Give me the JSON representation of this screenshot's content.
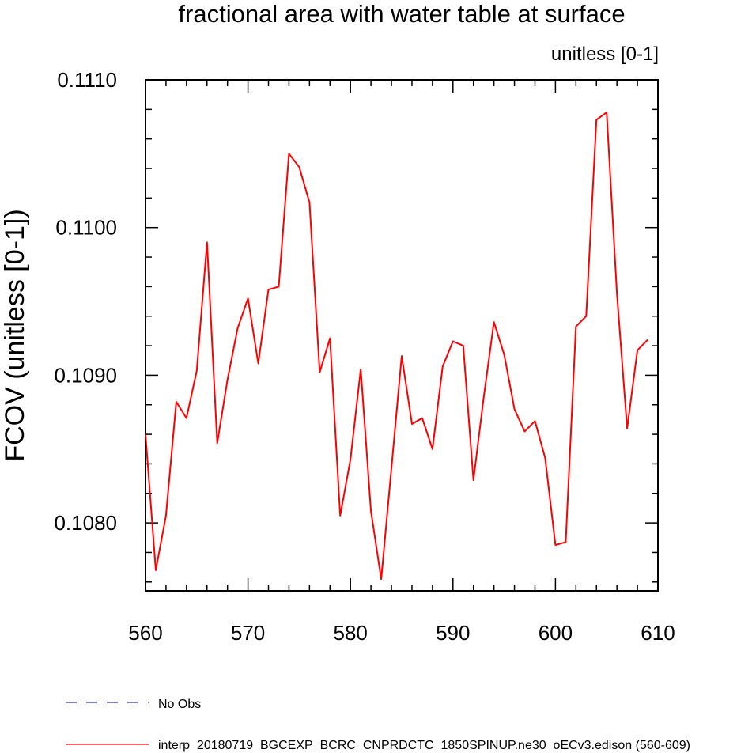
{
  "chart_data": {
    "type": "line",
    "title": "fractional area with water table at surface",
    "units_label": "unitless [0-1]",
    "ylabel": "FCOV  (unitless [0-1])",
    "xlabel": "",
    "xlim": [
      560,
      610
    ],
    "ylim": [
      0.10754,
      0.111
    ],
    "x_ticks": [
      560,
      570,
      580,
      590,
      600,
      610
    ],
    "x_tick_labels": [
      "560",
      "570",
      "580",
      "590",
      "600",
      "610"
    ],
    "y_ticks": [
      0.108,
      0.109,
      0.11,
      0.111
    ],
    "y_tick_labels": [
      "0.1080",
      "0.1090",
      "0.1100",
      "0.1110"
    ],
    "grid": false,
    "series": [
      {
        "name": "interp_20180719_BGCEXP_BCRC_CNPRDCTC_1850SPINUP.ne30_oECv3.edison (560-609)",
        "color": "#ff0000",
        "style": "solid",
        "x": [
          560,
          561,
          562,
          563,
          564,
          565,
          566,
          567,
          568,
          569,
          570,
          571,
          572,
          573,
          574,
          575,
          576,
          577,
          578,
          579,
          580,
          581,
          582,
          583,
          584,
          585,
          586,
          587,
          588,
          589,
          590,
          591,
          592,
          593,
          594,
          595,
          596,
          597,
          598,
          599,
          600,
          601,
          602,
          603,
          604,
          605,
          606,
          607,
          608,
          609
        ],
        "values": [
          0.1086,
          0.10768,
          0.10805,
          0.10882,
          0.10871,
          0.10903,
          0.1099,
          0.10854,
          0.10897,
          0.10932,
          0.10952,
          0.10908,
          0.10958,
          0.1096,
          0.1105,
          0.11041,
          0.11017,
          0.10902,
          0.10925,
          0.10805,
          0.10843,
          0.10904,
          0.10808,
          0.10762,
          0.10837,
          0.10913,
          0.10867,
          0.10871,
          0.1085,
          0.10906,
          0.10923,
          0.1092,
          0.10829,
          0.10885,
          0.10936,
          0.10914,
          0.10877,
          0.10862,
          0.10869,
          0.10844,
          0.10785,
          0.10787,
          0.10933,
          0.1094,
          0.11073,
          0.11078,
          0.10955,
          0.10864,
          0.10917,
          0.10924
        ]
      }
    ],
    "legend": [
      {
        "label": "No Obs",
        "color": "#3333cc",
        "style": "dashed"
      },
      {
        "label": "interp_20180719_BGCEXP_BCRC_CNPRDCTC_1850SPINUP.ne30_oECv3.edison (560-609)",
        "color": "#ff0000",
        "style": "solid"
      }
    ]
  }
}
